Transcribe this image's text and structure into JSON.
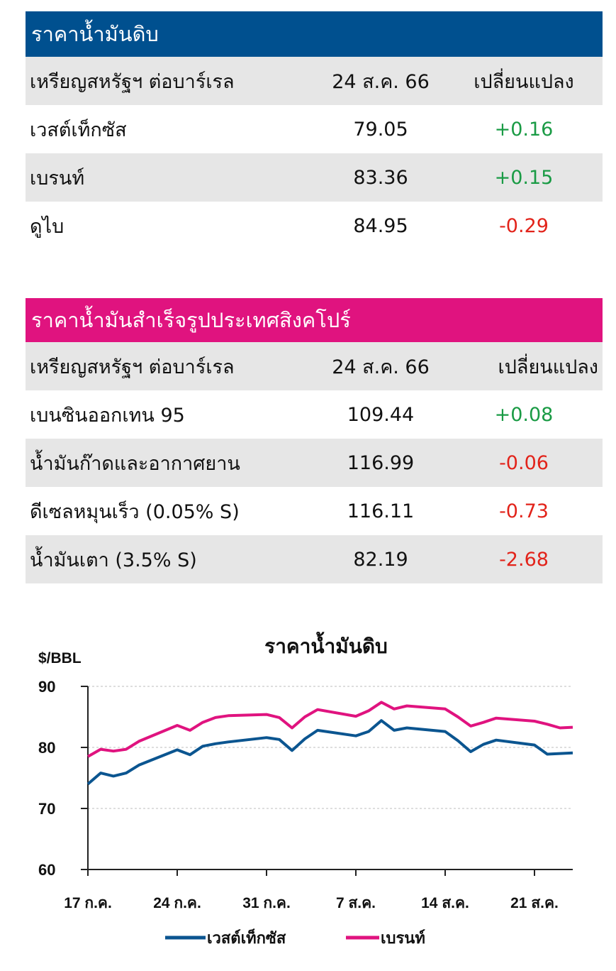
{
  "crude_table": {
    "title": "ราคาน้ำมันดิบ",
    "header": {
      "name": "เหรียญสหรัฐฯ ต่อบาร์เรล",
      "date": "24 ส.ค. 66",
      "change": "เปลี่ยนแปลง"
    },
    "rows": [
      {
        "name": "เวสต์เท็กซัส",
        "value": "79.05",
        "change": "+0.16"
      },
      {
        "name": "เบรนท์",
        "value": "83.36",
        "change": "+0.15"
      },
      {
        "name": "ดูไบ",
        "value": "84.95",
        "change": "-0.29"
      }
    ]
  },
  "refined_table": {
    "title": "ราคาน้ำมันสำเร็จรูปประเทศสิงคโปร์",
    "header": {
      "name": "เหรียญสหรัฐฯ ต่อบาร์เรล",
      "date": "24 ส.ค. 66",
      "change": "เปลี่ยนแปลง"
    },
    "rows": [
      {
        "name": "เบนซินออกเทน 95",
        "value": "109.44",
        "change": "+0.08"
      },
      {
        "name": "น้ำมันก๊าดและอากาศยาน",
        "value": "116.99",
        "change": "-0.06"
      },
      {
        "name": "ดีเซลหมุนเร็ว (0.05% S)",
        "value": "116.11",
        "change": "-0.73"
      },
      {
        "name": "น้ำมันเตา (3.5% S)",
        "value": "82.19",
        "change": "-2.68"
      }
    ]
  },
  "colors": {
    "crude_header": "#00508f",
    "refined_header": "#e0137f",
    "positive": "#1a9b45",
    "negative": "#e2231a",
    "wti_line": "#0b5590",
    "brent_line": "#e0137f"
  },
  "chart_data": {
    "type": "line",
    "title": "ราคาน้ำมันดิบ",
    "ylabel": "$/BBL",
    "ylim": [
      60,
      90
    ],
    "yticks": [
      60,
      70,
      80,
      90
    ],
    "xlim": [
      0,
      38
    ],
    "xticks": [
      {
        "x": 0,
        "label": "17 ก.ค."
      },
      {
        "x": 7,
        "label": "24 ก.ค."
      },
      {
        "x": 14,
        "label": "31 ก.ค."
      },
      {
        "x": 21,
        "label": "7 ส.ค."
      },
      {
        "x": 28,
        "label": "14 ส.ค."
      },
      {
        "x": 35,
        "label": "21 ส.ค."
      }
    ],
    "grid": true,
    "legend_position": "bottom",
    "x": [
      0,
      1,
      2,
      3,
      4,
      7,
      8,
      9,
      10,
      11,
      14,
      15,
      16,
      17,
      18,
      21,
      22,
      23,
      24,
      25,
      28,
      29,
      30,
      31,
      32,
      35,
      36,
      37,
      38
    ],
    "series": [
      {
        "name": "เวสต์เท็กซัส",
        "color": "#0b5590",
        "values": [
          74.0,
          75.8,
          75.3,
          75.8,
          77.1,
          79.6,
          78.8,
          80.2,
          80.6,
          80.9,
          81.6,
          81.3,
          79.5,
          81.4,
          82.8,
          81.9,
          82.6,
          84.4,
          82.8,
          83.2,
          82.6,
          81.1,
          79.3,
          80.5,
          81.2,
          80.4,
          78.9,
          79.0,
          79.1
        ]
      },
      {
        "name": "เบรนท์",
        "color": "#e0137f",
        "values": [
          78.5,
          79.7,
          79.4,
          79.7,
          81.0,
          83.6,
          82.8,
          84.1,
          84.9,
          85.2,
          85.4,
          84.9,
          83.2,
          85.0,
          86.2,
          85.1,
          86.0,
          87.4,
          86.3,
          86.8,
          86.3,
          85.0,
          83.5,
          84.1,
          84.8,
          84.3,
          83.8,
          83.2,
          83.3
        ]
      }
    ]
  }
}
